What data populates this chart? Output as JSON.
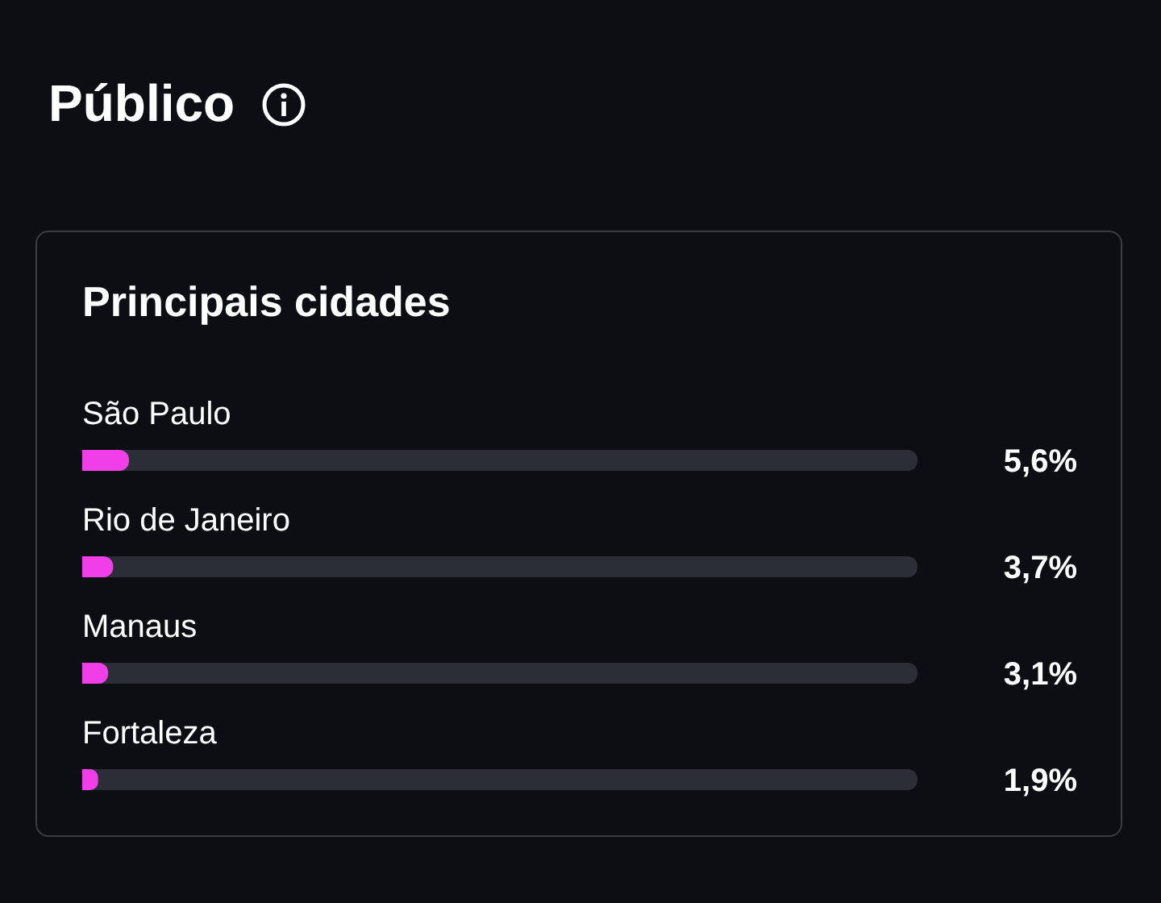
{
  "chart_data": {
    "type": "bar",
    "orientation": "horizontal",
    "title": "Público",
    "subtitle": "Principais cidades",
    "categories": [
      "São Paulo",
      "Rio de Janeiro",
      "Manaus",
      "Fortaleza"
    ],
    "values": [
      5.6,
      3.7,
      3.1,
      1.9
    ],
    "value_labels": [
      "5,6%",
      "3,7%",
      "3,1%",
      "1,9%"
    ],
    "color": "#f03ee8",
    "xlim": [
      0,
      100
    ]
  }
}
